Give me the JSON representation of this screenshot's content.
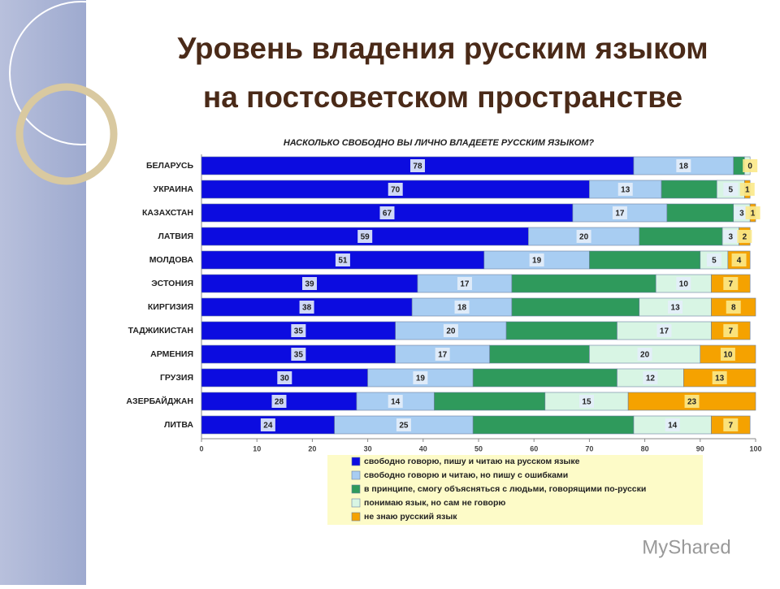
{
  "title": [
    "Уровень владения русским языком",
    "на постсоветском пространстве"
  ],
  "watermark": "MyShared",
  "chart_data": {
    "type": "stacked-bar-horizontal",
    "title": "НАСКОЛЬКО СВОБОДНО ВЫ ЛИЧНО ВЛАДЕЕТЕ РУССКИМ ЯЗЫКОМ?",
    "categories": [
      "БЕЛАРУСЬ",
      "УКРАИНА",
      "КАЗАХСТАН",
      "ЛАТВИЯ",
      "МОЛДОВА",
      "ЭСТОНИЯ",
      "КИРГИЗИЯ",
      "ТАДЖИКИСТАН",
      "АРМЕНИЯ",
      "ГРУЗИЯ",
      "АЗЕРБАЙДЖАН",
      "ЛИТВА"
    ],
    "series": [
      {
        "name": "свободно говорю, пишу и читаю на русском языке",
        "color": "#0c0ce0",
        "labels": true,
        "values": [
          78,
          70,
          67,
          59,
          51,
          39,
          38,
          35,
          35,
          30,
          28,
          24
        ]
      },
      {
        "name": "свободно говорю и читаю, но пишу с ошибками",
        "color": "#a8cdf2",
        "labels": true,
        "values": [
          18,
          13,
          17,
          20,
          19,
          17,
          18,
          20,
          17,
          19,
          14,
          25
        ]
      },
      {
        "name": "в принципе, смогу объясняться с людьми, говорящими по-русски",
        "color": "#2f9a5c",
        "labels": false,
        "values": [
          2,
          10,
          12,
          15,
          20,
          26,
          23,
          20,
          18,
          26,
          20,
          29
        ]
      },
      {
        "name": "понимаю язык, но сам не говорю",
        "color": "#d8f5e4",
        "values": [
          1,
          5,
          3,
          3,
          5,
          10,
          13,
          17,
          20,
          12,
          15,
          14
        ],
        "value_labels": [
          null,
          "5",
          "3",
          "3",
          "5",
          "10",
          "13",
          "17",
          "20",
          "12",
          "15",
          "14"
        ]
      },
      {
        "name": "не знаю русский язык",
        "color": "#f5a200",
        "labels": true,
        "values": [
          0,
          1,
          1,
          2,
          4,
          7,
          8,
          7,
          10,
          13,
          23,
          7
        ]
      }
    ],
    "xlim": [
      0,
      100
    ],
    "xticks": [
      0,
      10,
      20,
      30,
      40,
      50,
      60,
      70,
      80,
      90,
      100
    ]
  }
}
